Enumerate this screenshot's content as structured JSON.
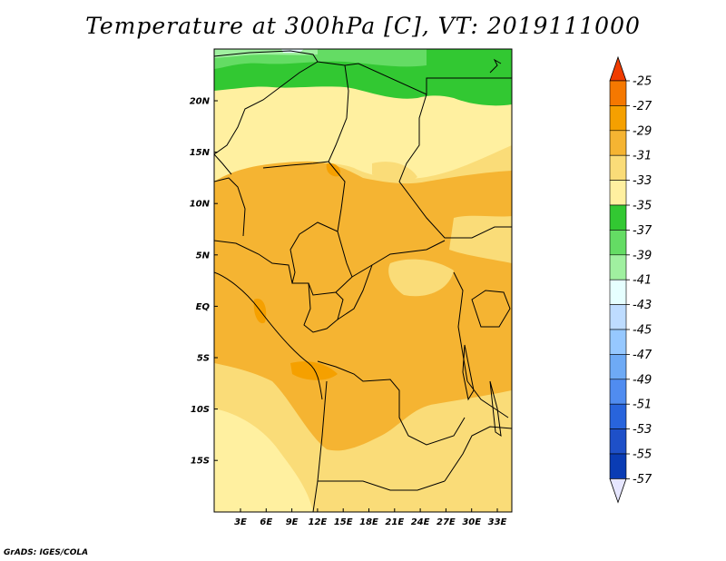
{
  "title": "Temperature at 300hPa [C], VT: 2019111000",
  "credit": "GrADS: IGES/COLA",
  "lat_labels": [
    "20N",
    "15N",
    "10N",
    "5N",
    "EQ",
    "5S",
    "10S",
    "15S"
  ],
  "lon_labels": [
    "3E",
    "6E",
    "9E",
    "12E",
    "15E",
    "18E",
    "21E",
    "24E",
    "27E",
    "30E",
    "33E"
  ],
  "colorbar": {
    "levels": [
      "-25",
      "-27",
      "-29",
      "-31",
      "-33",
      "-35",
      "-37",
      "-39",
      "-41",
      "-43",
      "-45",
      "-47",
      "-49",
      "-51",
      "-53",
      "-55",
      "-57"
    ],
    "colors": [
      "#f04b00",
      "#f57800",
      "#f5a000",
      "#f5b432",
      "#fadc78",
      "#fff0a0",
      "#32c832",
      "#64dc64",
      "#a0f0a0",
      "#e6ffff",
      "#bedcff",
      "#96c8ff",
      "#6eaaf5",
      "#508cf0",
      "#2864dc",
      "#1e50c8",
      "#0a3cb4",
      "#0a0a78"
    ],
    "top_arrow_color": "#f03c00",
    "bottom_arrow_color": "#e6e6ff"
  }
}
